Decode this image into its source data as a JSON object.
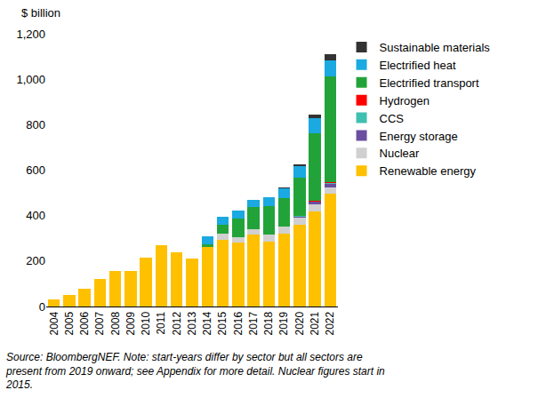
{
  "chart_data": {
    "type": "bar",
    "stacked": true,
    "grid": false,
    "legend": "right",
    "y_label": "$ billion",
    "note_lines": [
      "Source: BloombergNEF. Note: start-years differ by sector but all sectors are",
      "present from 2019 onward; see Appendix for more detail. Nuclear figures start in",
      "2015."
    ],
    "categories": [
      "2004",
      "2005",
      "2006",
      "2007",
      "2008",
      "2009",
      "2010",
      "2011",
      "2012",
      "2013",
      "2014",
      "2015",
      "2016",
      "2017",
      "2018",
      "2019",
      "2020",
      "2021",
      "2022"
    ],
    "ylim": [
      0,
      1200
    ],
    "yticks": [
      0,
      200,
      400,
      600,
      800,
      {
        "value": 1000,
        "label": "1,000"
      },
      {
        "value": 1200,
        "label": "1,200"
      }
    ],
    "series": [
      {
        "name": "Renewable energy",
        "color": "#ffc000",
        "values": [
          30,
          50,
          80,
          120,
          155,
          155,
          215,
          270,
          240,
          210,
          260,
          295,
          280,
          315,
          285,
          320,
          360,
          420,
          495
        ]
      },
      {
        "name": "Nuclear",
        "color": "#d0d0d0",
        "values": [
          null,
          null,
          null,
          null,
          null,
          null,
          null,
          null,
          null,
          null,
          null,
          25,
          25,
          25,
          30,
          30,
          30,
          30,
          30
        ]
      },
      {
        "name": "Energy storage",
        "color": "#6a4fa0",
        "values": [
          null,
          null,
          null,
          null,
          null,
          null,
          null,
          null,
          null,
          null,
          null,
          1,
          1,
          1,
          2,
          2,
          5,
          10,
          15
        ]
      },
      {
        "name": "CCS",
        "color": "#40c0b0",
        "values": [
          null,
          null,
          null,
          null,
          null,
          null,
          null,
          null,
          null,
          null,
          null,
          null,
          null,
          null,
          null,
          1,
          3,
          3,
          5
        ]
      },
      {
        "name": "Hydrogen",
        "color": "#ff0000",
        "values": [
          null,
          null,
          null,
          null,
          null,
          null,
          null,
          null,
          null,
          null,
          null,
          null,
          null,
          null,
          null,
          0.2,
          0.3,
          0.5,
          1
        ]
      },
      {
        "name": "Electrified transport",
        "color": "#22a339",
        "values": [
          null,
          null,
          null,
          null,
          null,
          null,
          null,
          null,
          null,
          null,
          15,
          40,
          80,
          95,
          125,
          125,
          170,
          300,
          465
        ]
      },
      {
        "name": "Electrified heat",
        "color": "#1aa9e0",
        "values": [
          null,
          null,
          null,
          null,
          null,
          null,
          null,
          null,
          null,
          null,
          35,
          35,
          35,
          35,
          40,
          43,
          50,
          65,
          70
        ]
      },
      {
        "name": "Sustainable materials",
        "color": "#333333",
        "values": [
          null,
          null,
          null,
          null,
          null,
          null,
          null,
          null,
          null,
          null,
          null,
          null,
          null,
          null,
          null,
          3,
          7,
          16,
          29
        ]
      }
    ]
  }
}
